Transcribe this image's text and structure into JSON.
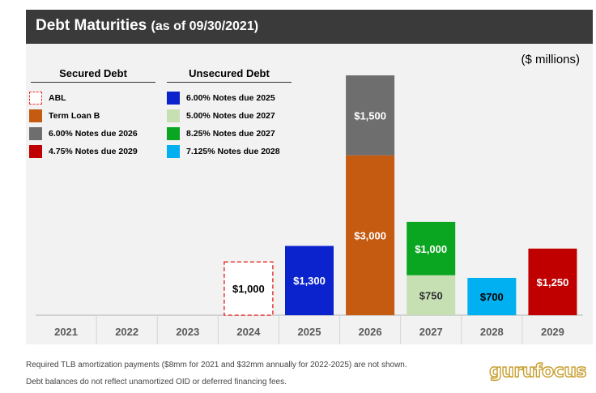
{
  "header": {
    "title": "Debt Maturities",
    "subtitle": "(as of 09/30/2021)"
  },
  "unit_label": "($ millions)",
  "legend": {
    "secured_title": "Secured Debt",
    "unsecured_title": "Unsecured Debt",
    "secured_items": [
      {
        "label": "ABL",
        "color": "#e53935",
        "dashed": true
      },
      {
        "label": "Term Loan B",
        "color": "#c55a11"
      },
      {
        "label": "6.00% Notes due 2026",
        "color": "#6e6e6e"
      },
      {
        "label": "4.75% Notes due 2029",
        "color": "#c00000"
      }
    ],
    "unsecured_items": [
      {
        "label": "6.00% Notes due 2025",
        "color": "#0b23cc"
      },
      {
        "label": "5.00% Notes due 2027",
        "color": "#c6e0b4"
      },
      {
        "label": "8.25% Notes due 2027",
        "color": "#0aa521"
      },
      {
        "label": "7.125% Notes due 2028",
        "color": "#00b0f0"
      }
    ]
  },
  "chart_data": {
    "type": "bar",
    "stacked": true,
    "categories": [
      "2021",
      "2022",
      "2023",
      "2024",
      "2025",
      "2026",
      "2027",
      "2028",
      "2029"
    ],
    "ylim": [
      0,
      4500
    ],
    "segments": [
      {
        "category": "2024",
        "series": "ABL",
        "value": 1000,
        "label": "$1,000",
        "color": "#e53935",
        "dashed": true,
        "text_color": "#000000"
      },
      {
        "category": "2025",
        "series": "6.00% Notes due 2025",
        "value": 1300,
        "label": "$1,300",
        "color": "#0b23cc",
        "text_color": "#ffffff"
      },
      {
        "category": "2026",
        "series": "Term Loan B",
        "value": 3000,
        "label": "$3,000",
        "color": "#c55a11",
        "text_color": "#ffffff"
      },
      {
        "category": "2026",
        "series": "6.00% Notes due 2026",
        "value": 1500,
        "label": "$1,500",
        "color": "#6e6e6e",
        "text_color": "#ffffff"
      },
      {
        "category": "2027",
        "series": "5.00% Notes due 2027",
        "value": 750,
        "label": "$750",
        "color": "#c6e0b4",
        "text_color": "#333333"
      },
      {
        "category": "2027",
        "series": "8.25% Notes due 2027",
        "value": 1000,
        "label": "$1,000",
        "color": "#0aa521",
        "text_color": "#ffffff"
      },
      {
        "category": "2028",
        "series": "7.125% Notes due 2028",
        "value": 700,
        "label": "$700",
        "color": "#00b0f0",
        "text_color": "#000000"
      },
      {
        "category": "2029",
        "series": "4.75% Notes due 2029",
        "value": 1250,
        "label": "$1,250",
        "color": "#c00000",
        "text_color": "#ffffff"
      }
    ]
  },
  "footnotes": [
    "Required TLB amortization payments ($8mm for 2021 and $32mm annually for 2022-2025) are not shown.",
    "Debt balances do not reflect unamortized OID or deferred financing fees."
  ],
  "logo": "gurufocus"
}
